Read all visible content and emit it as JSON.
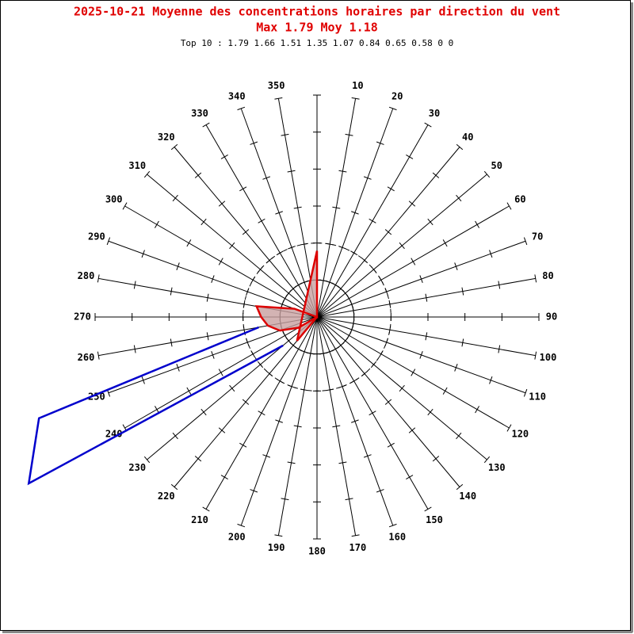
{
  "chart_data": {
    "type": "polar",
    "title": "2025-10-21 Moyenne des concentrations horaires par direction du vent",
    "subtitle": "Max 1.79 Moy 1.18",
    "annotation": "Top 10 : 1.79 1.66 1.51 1.35 1.07 0.84 0.65 0.58 0 0",
    "categories": [
      null,
      "10",
      "20",
      "30",
      "40",
      "50",
      "60",
      "70",
      "80",
      "90",
      "100",
      "110",
      "120",
      "130",
      "140",
      "150",
      "160",
      "170",
      "180",
      "190",
      "200",
      "210",
      "220",
      "230",
      "240",
      "250",
      "260",
      "270",
      "280",
      "290",
      "300",
      "310",
      "320",
      "330",
      "340",
      "350"
    ],
    "rlim": [
      0,
      6
    ],
    "rticks": [
      1,
      2,
      3,
      4,
      5,
      6
    ],
    "rings": [
      1,
      2
    ],
    "ring_styles": [
      "solid",
      "dashed"
    ],
    "series": [
      {
        "color": "#0000cc",
        "fill": "none",
        "values": [
          null,
          null,
          null,
          null,
          null,
          null,
          null,
          null,
          null,
          null,
          null,
          null,
          null,
          null,
          null,
          null,
          null,
          null,
          null,
          null,
          null,
          null,
          null,
          1.2,
          9.0,
          8.0,
          1.6,
          null,
          null,
          null,
          null,
          null,
          null,
          null,
          null,
          null
        ]
      },
      {
        "color": "#dd0000",
        "fill": "#c8a0a0",
        "values": [
          1.79,
          null,
          null,
          null,
          null,
          null,
          null,
          null,
          null,
          null,
          null,
          null,
          null,
          null,
          null,
          null,
          null,
          null,
          null,
          null,
          null,
          null,
          0.84,
          0,
          0.58,
          1.07,
          1.35,
          1.51,
          1.66,
          0.65,
          null,
          null,
          null,
          null,
          null,
          0
        ]
      }
    ]
  }
}
